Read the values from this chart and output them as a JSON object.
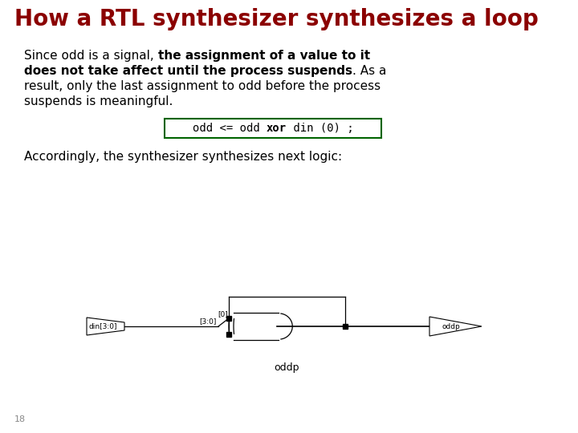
{
  "title": "How a RTL synthesizer synthesizes a loop",
  "title_color": "#8B0000",
  "title_fontsize": 20,
  "bg_color": "#ffffff",
  "code_text_parts": [
    {
      "text": "odd <= odd ",
      "bold": false
    },
    {
      "text": "xor",
      "bold": true
    },
    {
      "text": " din (0) ;",
      "bold": false
    }
  ],
  "accordingly_text": "Accordingly, the synthesizer synthesizes next logic:",
  "page_number": "18",
  "body_fontsize": 11,
  "code_fontsize": 10,
  "code_box_color": "#006400"
}
